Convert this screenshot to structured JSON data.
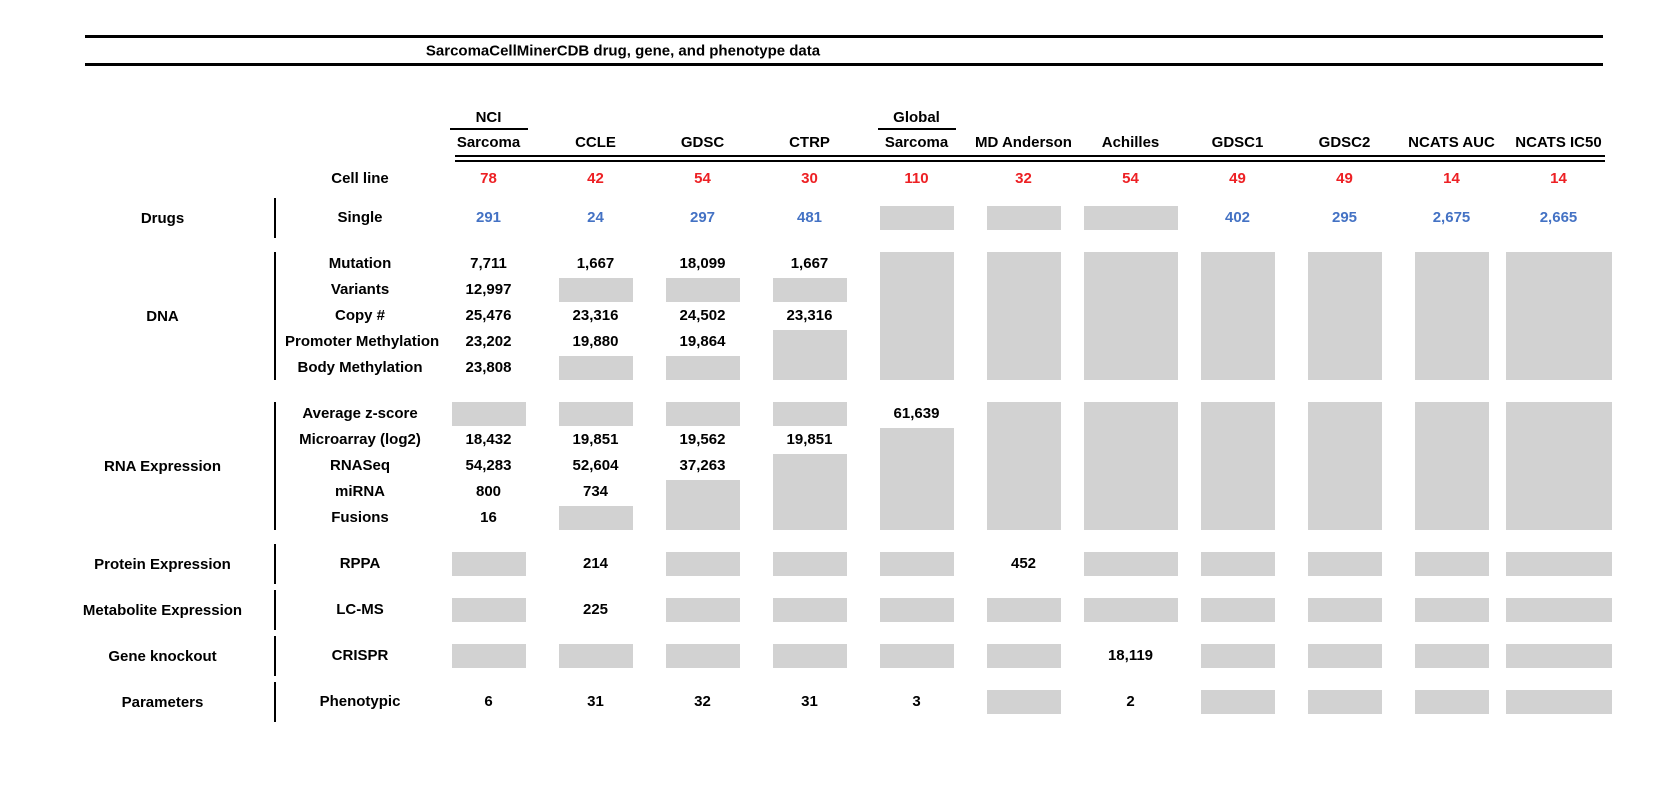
{
  "title": "SarcomaCellMinerCDB drug, gene, and phenotype data",
  "cell_line_label": "Cell line",
  "colors": {
    "red": "#ed2024",
    "blue": "#4472c4",
    "gray": "#d2d2d2",
    "rule": "#000000"
  },
  "columns": [
    {
      "label_top": "NCI",
      "label": "Sarcoma",
      "cell_lines": "78"
    },
    {
      "label_top": "",
      "label": "CCLE",
      "cell_lines": "42"
    },
    {
      "label_top": "",
      "label": "GDSC",
      "cell_lines": "54"
    },
    {
      "label_top": "",
      "label": "CTRP",
      "cell_lines": "30"
    },
    {
      "label_top": "Global",
      "label": "Sarcoma",
      "cell_lines": "110"
    },
    {
      "label_top": "",
      "label": "MD Anderson",
      "cell_lines": "32"
    },
    {
      "label_top": "",
      "label": "Achilles",
      "cell_lines": "54"
    },
    {
      "label_top": "",
      "label": "GDSC1",
      "cell_lines": "49"
    },
    {
      "label_top": "",
      "label": "GDSC2",
      "cell_lines": "49"
    },
    {
      "label_top": "",
      "label": "NCATS AUC",
      "cell_lines": "14"
    },
    {
      "label_top": "",
      "label": "NCATS IC50",
      "cell_lines": "14"
    }
  ],
  "legend_note": "numeric cell = count available; gray box = no data; integers in cells arrays denote gray boxes spanning that many rows",
  "sections": [
    {
      "category": "Drugs",
      "value_color": "blue",
      "rows": [
        "Single"
      ],
      "cells": [
        [
          "291"
        ],
        [
          "24"
        ],
        [
          "297"
        ],
        [
          "481"
        ],
        [
          1
        ],
        [
          1
        ],
        [
          1
        ],
        [
          "402"
        ],
        [
          "295"
        ],
        [
          "2,675"
        ],
        [
          "2,665"
        ]
      ]
    },
    {
      "category": "DNA",
      "value_color": "black",
      "rows": [
        "Mutation",
        "Variants",
        "Copy #",
        "Promoter Methylation",
        "Body Methylation"
      ],
      "cells": [
        [
          "7,711",
          "12,997",
          "25,476",
          "23,202",
          "23,808"
        ],
        [
          "1,667",
          1,
          "23,316",
          "19,880",
          1
        ],
        [
          "18,099",
          1,
          "24,502",
          "19,864",
          1
        ],
        [
          "1,667",
          1,
          "23,316",
          2
        ],
        [
          5
        ],
        [
          5
        ],
        [
          5
        ],
        [
          5
        ],
        [
          5
        ],
        [
          5
        ],
        [
          5
        ]
      ]
    },
    {
      "category": "RNA Expression",
      "value_color": "black",
      "rows": [
        "Average z-score",
        "Microarray (log2)",
        "RNASeq",
        "miRNA",
        "Fusions"
      ],
      "cells": [
        [
          1,
          "18,432",
          "54,283",
          "800",
          "16"
        ],
        [
          1,
          "19,851",
          "52,604",
          "734",
          1
        ],
        [
          1,
          "19,562",
          "37,263",
          2
        ],
        [
          1,
          "19,851",
          3
        ],
        [
          "61,639",
          4
        ],
        [
          5
        ],
        [
          5
        ],
        [
          5
        ],
        [
          5
        ],
        [
          5
        ],
        [
          5
        ]
      ]
    },
    {
      "category": "Protein Expression",
      "value_color": "black",
      "rows": [
        "RPPA"
      ],
      "cells": [
        [
          1
        ],
        [
          "214"
        ],
        [
          1
        ],
        [
          1
        ],
        [
          1
        ],
        [
          "452"
        ],
        [
          1
        ],
        [
          1
        ],
        [
          1
        ],
        [
          1
        ],
        [
          1
        ]
      ]
    },
    {
      "category": "Metabolite Expression",
      "value_color": "black",
      "rows": [
        "LC-MS"
      ],
      "cells": [
        [
          1
        ],
        [
          "225"
        ],
        [
          1
        ],
        [
          1
        ],
        [
          1
        ],
        [
          1
        ],
        [
          1
        ],
        [
          1
        ],
        [
          1
        ],
        [
          1
        ],
        [
          1
        ]
      ]
    },
    {
      "category": "Gene knockout",
      "value_color": "black",
      "rows": [
        "CRISPR"
      ],
      "cells": [
        [
          1
        ],
        [
          1
        ],
        [
          1
        ],
        [
          1
        ],
        [
          1
        ],
        [
          1
        ],
        [
          "18,119"
        ],
        [
          1
        ],
        [
          1
        ],
        [
          1
        ],
        [
          1
        ]
      ]
    },
    {
      "category": "Parameters",
      "value_color": "black",
      "rows": [
        "Phenotypic"
      ],
      "cells": [
        [
          "6"
        ],
        [
          "31"
        ],
        [
          "32"
        ],
        [
          "31"
        ],
        [
          "3"
        ],
        [
          1
        ],
        [
          "2"
        ],
        [
          1
        ],
        [
          1
        ],
        [
          1
        ],
        [
          1
        ]
      ]
    }
  ]
}
